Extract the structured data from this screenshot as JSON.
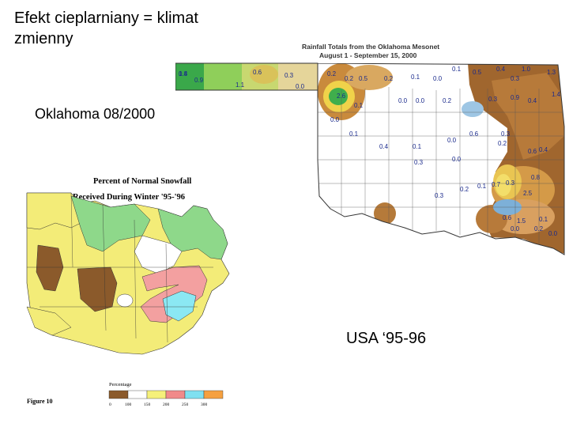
{
  "slide": {
    "title_line1": "Efekt cieplarniany = klimat",
    "title_line2": "zmienny"
  },
  "captions": {
    "oklahoma": "Oklahoma 08/2000",
    "usa": "USA ‘95-96"
  },
  "oklahoma_map": {
    "title_line1": "Rainfall Totals from the Oklahoma Mesonet",
    "title_line2": "August 1 - September 15, 2000",
    "values": [
      "1.8",
      "0.9",
      "1.1",
      "0.6",
      "0.3",
      "0.0",
      "0.2",
      "0.2",
      "0.5",
      "0.2",
      "0.1",
      "0.0",
      "0.1",
      "0.5",
      "0.4",
      "1.0",
      "0.3",
      "1.3",
      "2.6",
      "0.0",
      "0.0",
      "0.1",
      "0.3",
      "0.9",
      "0.4",
      "1.4",
      "0.2",
      "0.6",
      "0.3",
      "0.0",
      "0.1",
      "0.4",
      "0.1",
      "0.0",
      "0.0",
      "0.3",
      "0.6",
      "0.4",
      "0.2",
      "0.3",
      "2.5",
      "0.8",
      "0.2",
      "0.3",
      "0.1",
      "0.7",
      "0.6",
      "1.5",
      "0.1",
      "0.2",
      "0.0",
      "0.0",
      "0.4"
    ],
    "colors": {
      "zero": "#ffffff",
      "low": "#6aa8d8",
      "mid": "#d9c25a",
      "high": "#a0662e",
      "max": "#2ba346"
    }
  },
  "snow_map": {
    "title_line1": "Percent of Normal Snowfall",
    "title_line2": "Received During Winter '95-'96",
    "figure_label": "Figure 10",
    "legend_title": "Percentage",
    "legend_ticks": [
      "0",
      "100",
      "150",
      "200",
      "250",
      "300"
    ],
    "legend_colors": [
      "#8b5a2b",
      "#ffffff",
      "#f5f07a",
      "#f08a8a",
      "#7fe0f0",
      "#f5a040"
    ],
    "colors": {
      "below_normal": "#8b5a2b",
      "normal": "#ffffff",
      "green": "#8ed88a",
      "yellow": "#f3ec78",
      "pink": "#f3a0a0",
      "cyan": "#8be8f3",
      "orange": "#f5a040"
    }
  }
}
